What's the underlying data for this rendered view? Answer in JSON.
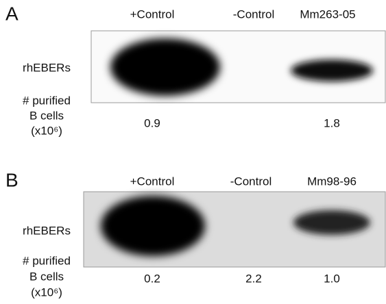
{
  "panels": [
    {
      "letter": "A",
      "lanes": [
        "+Control",
        "-Control",
        "Mm263-05"
      ],
      "band_label": "rhEBERs",
      "count_label": [
        "# purified",
        "B cells",
        "(x10⁶)"
      ],
      "counts": [
        "0.9",
        null,
        "1.8"
      ]
    },
    {
      "letter": "B",
      "lanes": [
        "+Control",
        "-Control",
        "Mm98-96"
      ],
      "band_label": "rhEBERs",
      "count_label": [
        "# purified",
        "B cells",
        "(x10⁶)"
      ],
      "counts": [
        "0.2",
        "2.2",
        "1.0"
      ]
    }
  ]
}
